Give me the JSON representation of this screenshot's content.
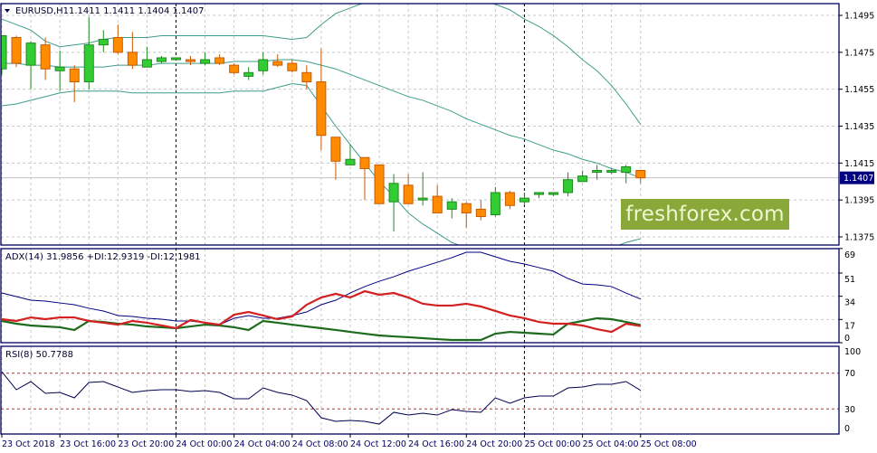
{
  "header": {
    "symbol_label": "EURUSD,H1",
    "ohlc_label": "1.1411 1.1411 1.1404 1.1407",
    "menu_icon": "triangle-down-icon"
  },
  "logo": {
    "text": "freshforex.com",
    "color": "#8aa83a"
  },
  "colors": {
    "bull": "#32cd32",
    "bull_border": "#1f8a1f",
    "bear": "#ff8c00",
    "bear_border": "#c85a00",
    "bands": "#3f9c8a",
    "adx": "#000080",
    "plus_di": "#1e6b1e",
    "minus_di": "#d42020",
    "rsi": "#000050",
    "rsi_levels": "#c03030",
    "frame": "#000060",
    "grid": "#c8c8c8",
    "price_tag_bg": "#000080"
  },
  "chart_data": [
    {
      "type": "candlestick",
      "title": "EURUSD,H1",
      "price_axis_labels": [
        "1.1495",
        "1.1475",
        "1.1455",
        "1.1435",
        "1.1415",
        "1.1395",
        "1.1375"
      ],
      "current_price": "1.1407",
      "ylim": [
        1.1364,
        1.1502
      ],
      "grid": true,
      "time_axis_labels": [
        "23 Oct 2018",
        "23 Oct 16:00",
        "23 Oct 20:00",
        "24 Oct 00:00",
        "24 Oct 04:00",
        "24 Oct 08:00",
        "24 Oct 12:00",
        "24 Oct 16:00",
        "24 Oct 20:00",
        "25 Oct 00:00",
        "25 Oct 04:00",
        "25 Oct 08:00"
      ],
      "period_separators": [
        "24 Oct 00:00",
        "25 Oct 00:00"
      ],
      "times": [
        "23 Oct 12:00",
        "23 Oct 13:00",
        "23 Oct 14:00",
        "23 Oct 15:00",
        "23 Oct 16:00",
        "23 Oct 17:00",
        "23 Oct 18:00",
        "23 Oct 19:00",
        "23 Oct 20:00",
        "23 Oct 21:00",
        "23 Oct 22:00",
        "23 Oct 23:00",
        "24 Oct 00:00",
        "24 Oct 01:00",
        "24 Oct 02:00",
        "24 Oct 03:00",
        "24 Oct 04:00",
        "24 Oct 05:00",
        "24 Oct 06:00",
        "24 Oct 07:00",
        "24 Oct 08:00",
        "24 Oct 09:00",
        "24 Oct 10:00",
        "24 Oct 11:00",
        "24 Oct 12:00",
        "24 Oct 13:00",
        "24 Oct 14:00",
        "24 Oct 15:00",
        "24 Oct 16:00",
        "24 Oct 17:00",
        "24 Oct 18:00",
        "24 Oct 19:00",
        "24 Oct 20:00",
        "24 Oct 21:00",
        "24 Oct 22:00",
        "24 Oct 23:00",
        "25 Oct 00:00",
        "25 Oct 01:00",
        "25 Oct 02:00",
        "25 Oct 03:00",
        "25 Oct 04:00",
        "25 Oct 05:00",
        "25 Oct 06:00",
        "25 Oct 07:00",
        "25 Oct 08:00"
      ],
      "ohlc": [
        [
          1.1466,
          1.1484,
          1.1463,
          1.1484
        ],
        [
          1.1483,
          1.1484,
          1.1467,
          1.1469
        ],
        [
          1.1468,
          1.1481,
          1.1455,
          1.148
        ],
        [
          1.1479,
          1.1483,
          1.146,
          1.1466
        ],
        [
          1.1465,
          1.1476,
          1.1454,
          1.1467
        ],
        [
          1.1466,
          1.1468,
          1.1448,
          1.1459
        ],
        [
          1.1459,
          1.1494,
          1.1455,
          1.1479
        ],
        [
          1.1479,
          1.1487,
          1.1475,
          1.1482
        ],
        [
          1.1483,
          1.149,
          1.1474,
          1.1475
        ],
        [
          1.1475,
          1.1486,
          1.1466,
          1.1468
        ],
        [
          1.1467,
          1.1478,
          1.1467,
          1.1471
        ],
        [
          1.147,
          1.1473,
          1.1469,
          1.1472
        ],
        [
          1.1471,
          1.1472,
          1.1471,
          1.1472
        ],
        [
          1.1471,
          1.1473,
          1.1468,
          1.147
        ],
        [
          1.1469,
          1.1475,
          1.1468,
          1.1471
        ],
        [
          1.1472,
          1.1474,
          1.1468,
          1.1469
        ],
        [
          1.1468,
          1.1469,
          1.1463,
          1.1464
        ],
        [
          1.1462,
          1.1467,
          1.146,
          1.1464
        ],
        [
          1.1465,
          1.1475,
          1.1463,
          1.1471
        ],
        [
          1.147,
          1.1474,
          1.1467,
          1.1468
        ],
        [
          1.1469,
          1.1471,
          1.1464,
          1.1465
        ],
        [
          1.1464,
          1.1468,
          1.1455,
          1.1459
        ],
        [
          1.1459,
          1.1477,
          1.1422,
          1.143
        ],
        [
          1.1429,
          1.1429,
          1.1406,
          1.1416
        ],
        [
          1.1414,
          1.1425,
          1.1414,
          1.1417
        ],
        [
          1.1418,
          1.1418,
          1.1395,
          1.1412
        ],
        [
          1.1414,
          1.1414,
          1.1393,
          1.1393
        ],
        [
          1.1394,
          1.1409,
          1.1378,
          1.1404
        ],
        [
          1.1403,
          1.1409,
          1.1393,
          1.1393
        ],
        [
          1.1395,
          1.141,
          1.1392,
          1.1396
        ],
        [
          1.1397,
          1.1403,
          1.1388,
          1.1388
        ],
        [
          1.139,
          1.1396,
          1.1385,
          1.1394
        ],
        [
          1.1393,
          1.1394,
          1.138,
          1.1388
        ],
        [
          1.139,
          1.1395,
          1.1384,
          1.1386
        ],
        [
          1.1387,
          1.1402,
          1.1386,
          1.1399
        ],
        [
          1.1399,
          1.14,
          1.139,
          1.1392
        ],
        [
          1.1394,
          1.1399,
          1.1392,
          1.1396
        ],
        [
          1.1398,
          1.1399,
          1.1396,
          1.1399
        ],
        [
          1.1398,
          1.1399,
          1.1397,
          1.1399
        ],
        [
          1.1399,
          1.141,
          1.1397,
          1.1406
        ],
        [
          1.1405,
          1.1411,
          1.1405,
          1.1408
        ],
        [
          1.141,
          1.1414,
          1.1406,
          1.1411
        ],
        [
          1.141,
          1.1412,
          1.1409,
          1.1411
        ],
        [
          1.141,
          1.1414,
          1.1404,
          1.1413
        ],
        [
          1.1411,
          1.1411,
          1.1404,
          1.1407
        ]
      ],
      "bands_upper": [
        1.1493,
        1.149,
        1.1487,
        1.1481,
        1.1478,
        1.1479,
        1.148,
        1.1482,
        1.1483,
        1.1483,
        1.1483,
        1.1484,
        1.1484,
        1.1484,
        1.1484,
        1.1484,
        1.1484,
        1.1484,
        1.1484,
        1.1483,
        1.1482,
        1.1483,
        1.149,
        1.1496,
        1.1499,
        1.1502,
        1.1505,
        1.1507,
        1.1509,
        1.151,
        1.151,
        1.1508,
        1.1506,
        1.1503,
        1.1501,
        1.1498,
        1.1493,
        1.1489,
        1.1484,
        1.1478,
        1.1471,
        1.1465,
        1.1457,
        1.1447,
        1.1436
      ],
      "bands_middle": [
        1.1469,
        1.1469,
        1.1468,
        1.1468,
        1.1467,
        1.1467,
        1.1467,
        1.1467,
        1.1468,
        1.1468,
        1.1468,
        1.1469,
        1.1469,
        1.1469,
        1.1469,
        1.1469,
        1.147,
        1.147,
        1.147,
        1.1471,
        1.1471,
        1.147,
        1.1468,
        1.1466,
        1.1463,
        1.146,
        1.1457,
        1.1454,
        1.1451,
        1.1449,
        1.1446,
        1.1443,
        1.1439,
        1.1436,
        1.1433,
        1.143,
        1.1428,
        1.1425,
        1.1422,
        1.142,
        1.1417,
        1.1415,
        1.1412,
        1.141,
        1.1407
      ],
      "bands_lower": [
        1.1446,
        1.1447,
        1.1449,
        1.1451,
        1.1453,
        1.1454,
        1.1454,
        1.1454,
        1.1454,
        1.1453,
        1.1453,
        1.1453,
        1.1453,
        1.1453,
        1.1453,
        1.1453,
        1.1454,
        1.1454,
        1.1454,
        1.1456,
        1.1458,
        1.1457,
        1.1446,
        1.1435,
        1.1425,
        1.1415,
        1.1405,
        1.1397,
        1.1388,
        1.1382,
        1.1377,
        1.1372,
        1.1369,
        1.1366,
        1.1365,
        1.1364,
        1.1363,
        1.1363,
        1.1363,
        1.1364,
        1.1365,
        1.1367,
        1.1369,
        1.1372,
        1.1374
      ]
    },
    {
      "type": "line",
      "title": "ADX(14) 31.9856 +DI:12.9319 -DI:12.1981",
      "axis_labels": [
        "69",
        "51",
        "34",
        "17",
        "0"
      ],
      "ylim": [
        0,
        69
      ],
      "grid": true,
      "series": [
        {
          "key": "adx",
          "values": [
            36.4,
            33.8,
            31.1,
            30.5,
            29.1,
            27.8,
            25.2,
            23.2,
            19.9,
            19.2,
            17.9,
            17.2,
            15.9,
            15.9,
            14.6,
            13.2,
            17.9,
            19.9,
            17.9,
            17.9,
            19.9,
            22.5,
            27.8,
            31.1,
            36.4,
            41.1,
            45.0,
            48.3,
            52.3,
            55.6,
            58.9,
            62.3,
            66.2,
            66.2,
            62.9,
            59.6,
            57.6,
            55.0,
            52.3,
            47.0,
            43.0,
            42.4,
            41.1,
            36.4,
            31.99
          ]
        },
        {
          "key": "plus_di",
          "values": [
            15.9,
            13.9,
            12.6,
            11.9,
            11.3,
            9.3,
            15.9,
            15.2,
            13.9,
            13.2,
            11.9,
            11.3,
            10.6,
            11.9,
            13.2,
            12.6,
            11.3,
            9.3,
            15.9,
            14.6,
            13.2,
            11.9,
            10.6,
            9.3,
            7.9,
            6.6,
            5.3,
            4.6,
            4.0,
            3.3,
            2.6,
            2.0,
            2.0,
            2.0,
            6.6,
            7.9,
            7.3,
            6.6,
            6.0,
            13.9,
            15.9,
            17.9,
            17.2,
            15.2,
            12.93
          ]
        },
        {
          "key": "minus_di",
          "values": [
            17.2,
            15.9,
            18.5,
            17.2,
            18.5,
            18.5,
            15.9,
            14.6,
            13.2,
            15.9,
            14.6,
            12.6,
            10.6,
            16.6,
            14.6,
            13.2,
            20.5,
            22.5,
            19.9,
            17.2,
            19.2,
            27.8,
            33.1,
            35.8,
            33.1,
            37.7,
            35.1,
            36.4,
            33.1,
            28.5,
            27.2,
            27.2,
            28.5,
            26.5,
            23.2,
            19.9,
            17.9,
            15.2,
            13.9,
            13.9,
            12.6,
            9.9,
            7.9,
            13.9,
            12.2
          ]
        }
      ]
    },
    {
      "type": "line",
      "title": "RSI(8) 50.7788",
      "axis_labels": [
        "100",
        "70",
        "30",
        "0"
      ],
      "levels": [
        70,
        30
      ],
      "ylim": [
        0,
        100
      ],
      "series": [
        {
          "key": "rsi",
          "values": [
            71.7,
            51.5,
            60.6,
            47.5,
            48.5,
            42.4,
            59.6,
            60.6,
            54.5,
            48.5,
            50.5,
            51.5,
            51.5,
            49.5,
            50.5,
            48.5,
            41.4,
            41.4,
            53.5,
            48.5,
            45.5,
            39.4,
            20.2,
            16.2,
            17.2,
            16.2,
            13.1,
            26.3,
            23.2,
            25.3,
            23.2,
            29.3,
            27.3,
            26.3,
            42.4,
            36.4,
            42.4,
            44.4,
            44.4,
            53.5,
            54.5,
            57.6,
            57.6,
            60.6,
            50.78
          ]
        }
      ]
    }
  ]
}
